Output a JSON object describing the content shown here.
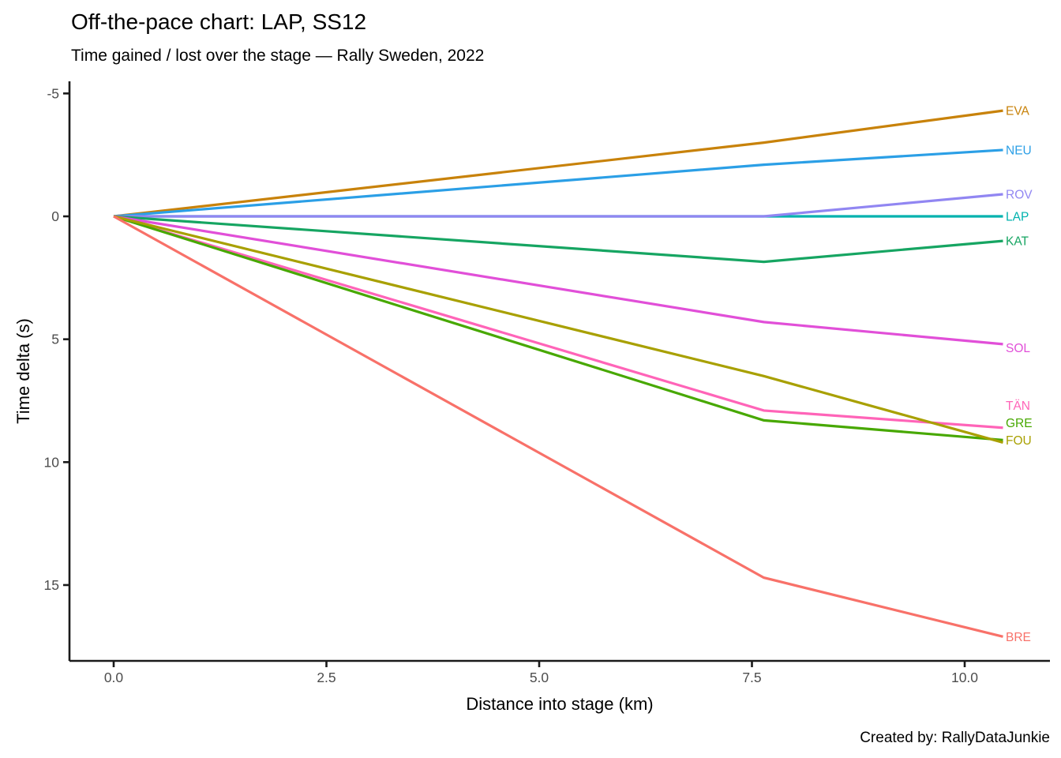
{
  "header": {
    "title": "Off-the-pace chart: LAP, SS12",
    "subtitle": "Time gained / lost over the stage — Rally Sweden, 2022"
  },
  "caption": "Created by: RallyDataJunkie",
  "chart_data": {
    "type": "line",
    "title": "Off-the-pace chart: LAP, SS12",
    "subtitle": "Time gained / lost over the stage — Rally Sweden, 2022",
    "xlabel": "Distance into stage (km)",
    "ylabel": "Time delta (s)",
    "x_tick_labels": [
      "0.0",
      "2.5",
      "5.0",
      "7.5",
      "10.0"
    ],
    "x_ticks": [
      0.0,
      2.5,
      5.0,
      7.5,
      10.0
    ],
    "y_tick_labels": [
      "-5",
      "0",
      "5",
      "10",
      "15"
    ],
    "y_ticks": [
      -5,
      0,
      5,
      10,
      15
    ],
    "xlim": [
      -0.5,
      11.0
    ],
    "ylim": [
      -5.5,
      18.2
    ],
    "y_axis_inverted": true,
    "grid": "off",
    "legend_position": "labels-at-line-ends-right",
    "x": [
      0,
      7.64,
      10.45
    ],
    "series": [
      {
        "name": "EVA",
        "color": "#C8820A",
        "values": [
          0,
          -3.0,
          -4.3
        ],
        "label_y": -4.3
      },
      {
        "name": "NEU",
        "color": "#2B9FE6",
        "values": [
          0,
          -2.1,
          -2.7
        ],
        "label_y": -2.7
      },
      {
        "name": "LAP",
        "color": "#00B2AE",
        "values": [
          0,
          0.0,
          0.0
        ],
        "label_y": 0.0
      },
      {
        "name": "ROV",
        "color": "#9186F2",
        "values": [
          0,
          0.0,
          -0.9
        ],
        "label_y": -0.9
      },
      {
        "name": "KAT",
        "color": "#16A562",
        "values": [
          0,
          1.85,
          1.0
        ],
        "label_y": 1.0
      },
      {
        "name": "SOL",
        "color": "#E14FD8",
        "values": [
          0,
          4.3,
          5.2
        ],
        "label_y": 5.35
      },
      {
        "name": "TÄN",
        "color": "#FF64B8",
        "values": [
          0,
          7.9,
          8.6
        ],
        "label_y": 7.7
      },
      {
        "name": "GRE",
        "color": "#47A800",
        "values": [
          0,
          8.3,
          9.1
        ],
        "label_y": 8.4
      },
      {
        "name": "FOU",
        "color": "#A8A000",
        "values": [
          0,
          6.5,
          9.2
        ],
        "label_y": 9.1
      },
      {
        "name": "BRE",
        "color": "#F87169",
        "values": [
          0,
          14.7,
          17.1
        ],
        "label_y": 17.1
      }
    ]
  }
}
